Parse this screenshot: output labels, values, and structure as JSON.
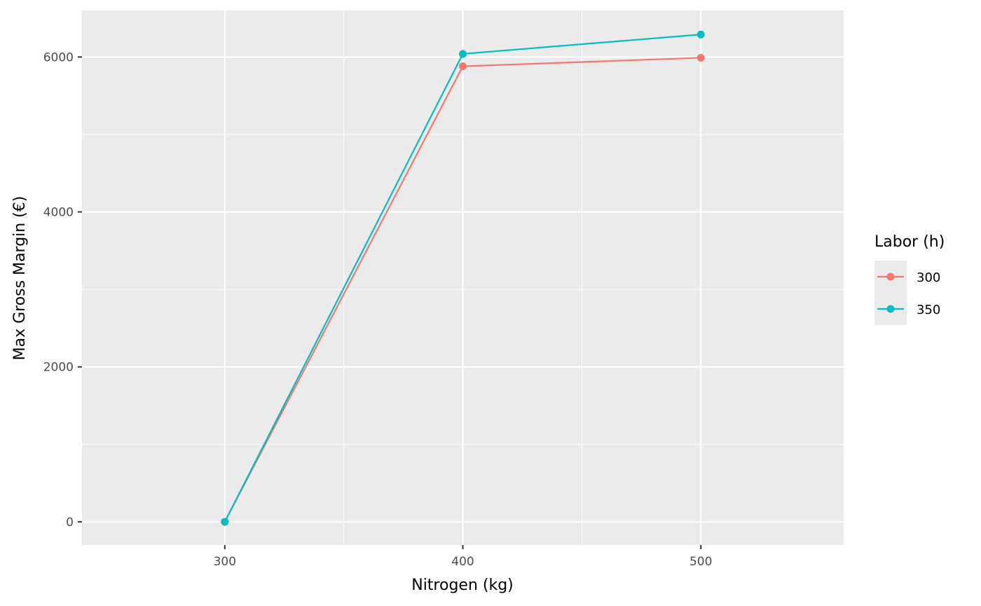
{
  "chart_data": {
    "type": "line",
    "xlabel": "Nitrogen (kg)",
    "ylabel": "Max Gross Margin (€)",
    "x": [
      300,
      400,
      500
    ],
    "x_ticks": [
      300,
      400,
      500
    ],
    "y_ticks": [
      0,
      2000,
      4000,
      6000
    ],
    "xlim": [
      240,
      560
    ],
    "ylim": [
      -300,
      6600
    ],
    "grid": true,
    "panel_background": "#ebebeb",
    "legend": {
      "title": "Labor (h)",
      "placement": "right"
    },
    "series": [
      {
        "name": "300",
        "color": "#f8766d",
        "values": [
          0,
          5880,
          5990
        ]
      },
      {
        "name": "350",
        "color": "#00bfc4",
        "values": [
          0,
          6040,
          6290
        ]
      }
    ]
  }
}
